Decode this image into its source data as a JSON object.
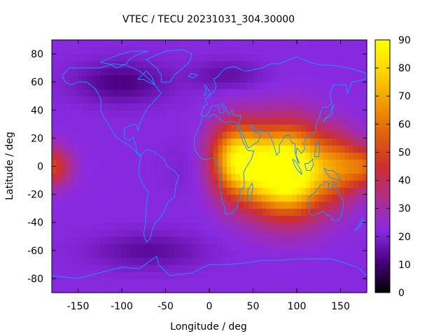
{
  "chart_data": {
    "type": "heatmap",
    "title": "VTEC / TECU 20231031_304.30000",
    "xlabel": "Longitude / deg",
    "ylabel": "Latitude / deg",
    "xlim": [
      -180,
      180
    ],
    "ylim": [
      -90,
      90
    ],
    "xticks": [
      -150,
      -100,
      -50,
      0,
      50,
      100,
      150
    ],
    "yticks": [
      -80,
      -60,
      -40,
      -20,
      0,
      20,
      40,
      60,
      80
    ],
    "colorbar": {
      "range": [
        0,
        90
      ],
      "ticks": [
        0,
        10,
        20,
        30,
        40,
        50,
        60,
        70,
        80,
        90
      ],
      "colormap": [
        "#000000",
        "#4b0082",
        "#8a2be2",
        "#b02e8a",
        "#cc2f2f",
        "#e0600b",
        "#f29a00",
        "#ffd400",
        "#ffff00"
      ]
    },
    "grid": false,
    "overlay": "coastlines",
    "overlay_color": "#1e90ff",
    "field": {
      "background_tecu": 22,
      "features": [
        {
          "lon": 88,
          "lat": -3,
          "peak_tecu": 85,
          "lon_spread": 48,
          "lat_spread": 30
        },
        {
          "lon": 30,
          "lat": 5,
          "peak_tecu": 52,
          "lon_spread": 30,
          "lat_spread": 25
        },
        {
          "lon": 150,
          "lat": 0,
          "peak_tecu": 25,
          "lon_spread": 25,
          "lat_spread": 22
        },
        {
          "lon": -180,
          "lat": 0,
          "peak_tecu": 28,
          "lon_spread": 22,
          "lat_spread": 14
        },
        {
          "lon": 180,
          "lat": 0,
          "peak_tecu": 28,
          "lon_spread": 22,
          "lat_spread": 14
        },
        {
          "lon": -100,
          "lat": 60,
          "peak_tecu": -11,
          "lon_spread": 50,
          "lat_spread": 14
        },
        {
          "lon": -70,
          "lat": -60,
          "peak_tecu": -8,
          "lon_spread": 60,
          "lat_spread": 12
        },
        {
          "lon": 20,
          "lat": 65,
          "peak_tecu": -7,
          "lon_spread": 40,
          "lat_spread": 10
        },
        {
          "lon": 0,
          "lat": 0,
          "peak_tecu": -4,
          "lon_spread": 40,
          "lat_spread": 20
        }
      ]
    }
  }
}
